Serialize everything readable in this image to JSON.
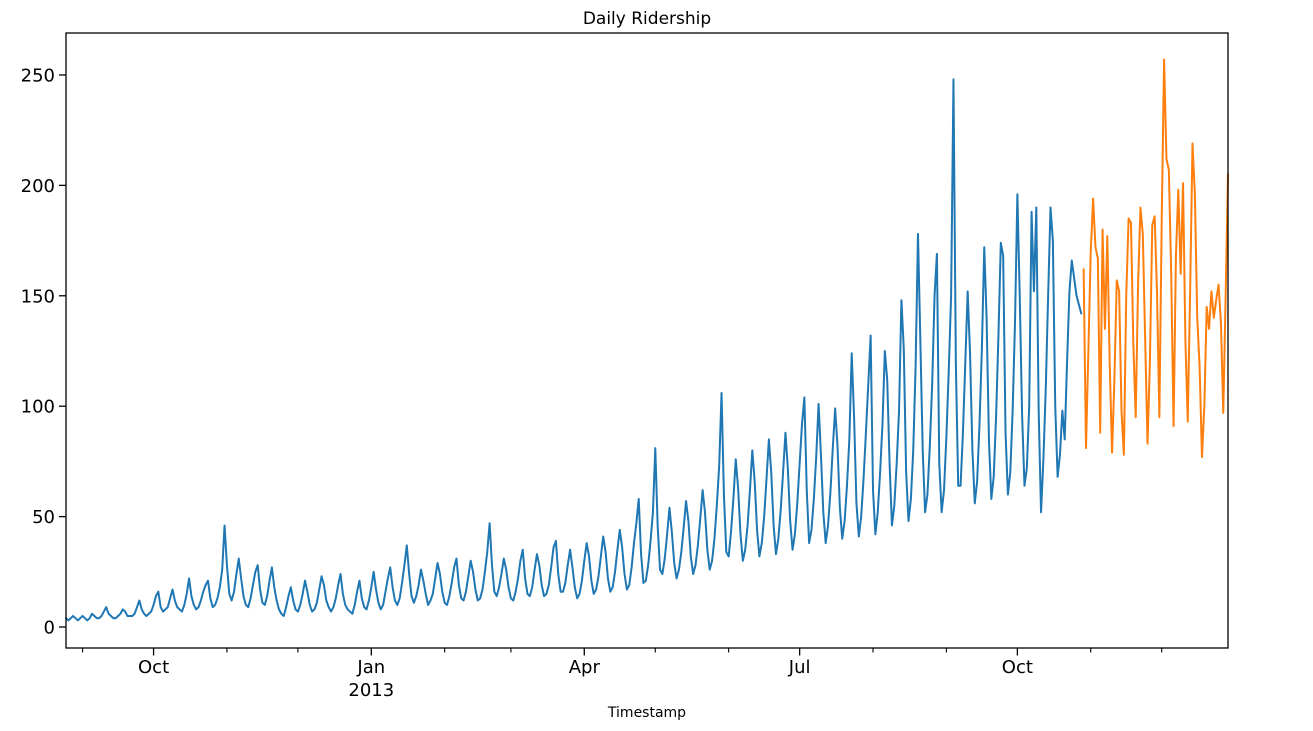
{
  "chart_data": {
    "type": "line",
    "title": "Daily Ridership",
    "xlabel": "Timestamp",
    "ylabel": "",
    "grid": false,
    "legend": "none",
    "x_unit": "daily timestamps, late Aug 2012 through Dec 31 2013 (day index 0..491)",
    "xlim": [
      0,
      491
    ],
    "ylim": [
      -9.5,
      269
    ],
    "y_ticks": [
      0,
      50,
      100,
      150,
      200,
      250
    ],
    "x_major_ticks": [
      {
        "day": 37,
        "label": "Oct",
        "sublabel": ""
      },
      {
        "day": 129,
        "label": "Jan",
        "sublabel": "2013"
      },
      {
        "day": 219,
        "label": "Apr",
        "sublabel": ""
      },
      {
        "day": 310,
        "label": "Jul",
        "sublabel": ""
      },
      {
        "day": 402,
        "label": "Oct",
        "sublabel": ""
      }
    ],
    "x_minor_tick_days": [
      7,
      68,
      98,
      160,
      188,
      249,
      280,
      341,
      372,
      433,
      463
    ],
    "colors": {
      "observed": "#1f77b4",
      "forecast": "#ff7f0e",
      "axis": "#000000"
    },
    "series": [
      {
        "id": "observed",
        "color": "#1f77b4",
        "start_day": 0,
        "values": [
          4,
          3,
          4,
          5,
          4,
          3,
          4,
          5,
          4,
          3,
          4,
          6,
          5,
          4,
          4,
          5,
          7,
          9,
          6,
          5,
          4,
          4,
          5,
          6,
          8,
          7,
          5,
          5,
          5,
          6,
          9,
          12,
          8,
          6,
          5,
          6,
          7,
          10,
          14,
          16,
          9,
          7,
          8,
          9,
          13,
          17,
          12,
          9,
          8,
          7,
          10,
          15,
          22,
          14,
          10,
          8,
          9,
          12,
          16,
          19,
          21,
          13,
          9,
          10,
          13,
          18,
          26,
          46,
          28,
          15,
          12,
          16,
          24,
          31,
          22,
          14,
          10,
          9,
          13,
          19,
          25,
          28,
          17,
          11,
          10,
          14,
          21,
          27,
          18,
          12,
          8,
          6,
          5,
          9,
          14,
          18,
          12,
          8,
          7,
          10,
          15,
          21,
          16,
          10,
          7,
          8,
          11,
          17,
          23,
          19,
          12,
          9,
          7,
          9,
          13,
          19,
          24,
          15,
          10,
          8,
          7,
          6,
          10,
          16,
          21,
          13,
          9,
          8,
          12,
          18,
          25,
          17,
          11,
          8,
          10,
          16,
          22,
          27,
          18,
          12,
          10,
          13,
          20,
          28,
          37,
          24,
          14,
          11,
          14,
          19,
          26,
          21,
          15,
          10,
          12,
          15,
          22,
          29,
          24,
          16,
          11,
          10,
          14,
          20,
          27,
          31,
          19,
          13,
          12,
          16,
          23,
          30,
          25,
          17,
          12,
          13,
          17,
          25,
          34,
          47,
          28,
          16,
          14,
          18,
          24,
          31,
          26,
          18,
          13,
          12,
          16,
          22,
          30,
          35,
          22,
          15,
          14,
          18,
          26,
          33,
          28,
          19,
          14,
          15,
          19,
          27,
          36,
          39,
          24,
          16,
          16,
          20,
          28,
          35,
          27,
          18,
          13,
          15,
          21,
          30,
          38,
          32,
          21,
          15,
          17,
          23,
          32,
          41,
          34,
          22,
          16,
          18,
          25,
          35,
          44,
          36,
          24,
          17,
          19,
          27,
          38,
          47,
          58,
          33,
          20,
          21,
          28,
          39,
          52,
          81,
          46,
          26,
          24,
          31,
          42,
          54,
          43,
          29,
          22,
          26,
          34,
          45,
          57,
          48,
          32,
          24,
          28,
          37,
          49,
          62,
          52,
          35,
          26,
          30,
          40,
          55,
          73,
          106,
          60,
          34,
          32,
          43,
          58,
          76,
          63,
          42,
          30,
          35,
          46,
          62,
          80,
          66,
          44,
          32,
          38,
          50,
          67,
          85,
          70,
          46,
          33,
          40,
          53,
          70,
          88,
          72,
          48,
          35,
          42,
          56,
          74,
          92,
          104,
          62,
          38,
          44,
          58,
          77,
          101,
          78,
          52,
          38,
          46,
          61,
          81,
          99,
          82,
          54,
          40,
          48,
          64,
          85,
          124,
          95,
          56,
          41,
          50,
          67,
          88,
          110,
          132,
          62,
          42,
          52,
          70,
          92,
          125,
          112,
          74,
          46,
          55,
          74,
          98,
          148,
          126,
          70,
          48,
          58,
          80,
          118,
          178,
          130,
          80,
          52,
          60,
          82,
          110,
          150,
          169,
          74,
          52,
          62,
          86,
          116,
          150,
          248,
          120,
          64,
          64,
          88,
          120,
          152,
          124,
          80,
          56,
          66,
          92,
          126,
          172,
          140,
          84,
          58,
          68,
          95,
          132,
          174,
          168,
          88,
          60,
          70,
          98,
          138,
          196,
          150,
          96,
          64,
          72,
          100,
          188,
          152,
          190,
          98,
          52,
          76,
          108,
          150,
          190,
          175,
          100,
          68,
          78,
          98,
          85,
          120,
          152,
          166,
          158,
          150,
          146,
          142
        ]
      },
      {
        "id": "forecast",
        "color": "#ff7f0e",
        "start_day": 430,
        "values": [
          162,
          81,
          125,
          170,
          194,
          172,
          167,
          88,
          180,
          135,
          177,
          120,
          79,
          112,
          157,
          152,
          98,
          78,
          150,
          185,
          183,
          128,
          95,
          155,
          190,
          178,
          130,
          83,
          120,
          182,
          186,
          152,
          95,
          185,
          257,
          212,
          207,
          160,
          91,
          168,
          198,
          160,
          201,
          130,
          93,
          152,
          219,
          196,
          140,
          118,
          77,
          100,
          145,
          135,
          152,
          140,
          148,
          155,
          138,
          97,
          150,
          205
        ]
      }
    ]
  }
}
